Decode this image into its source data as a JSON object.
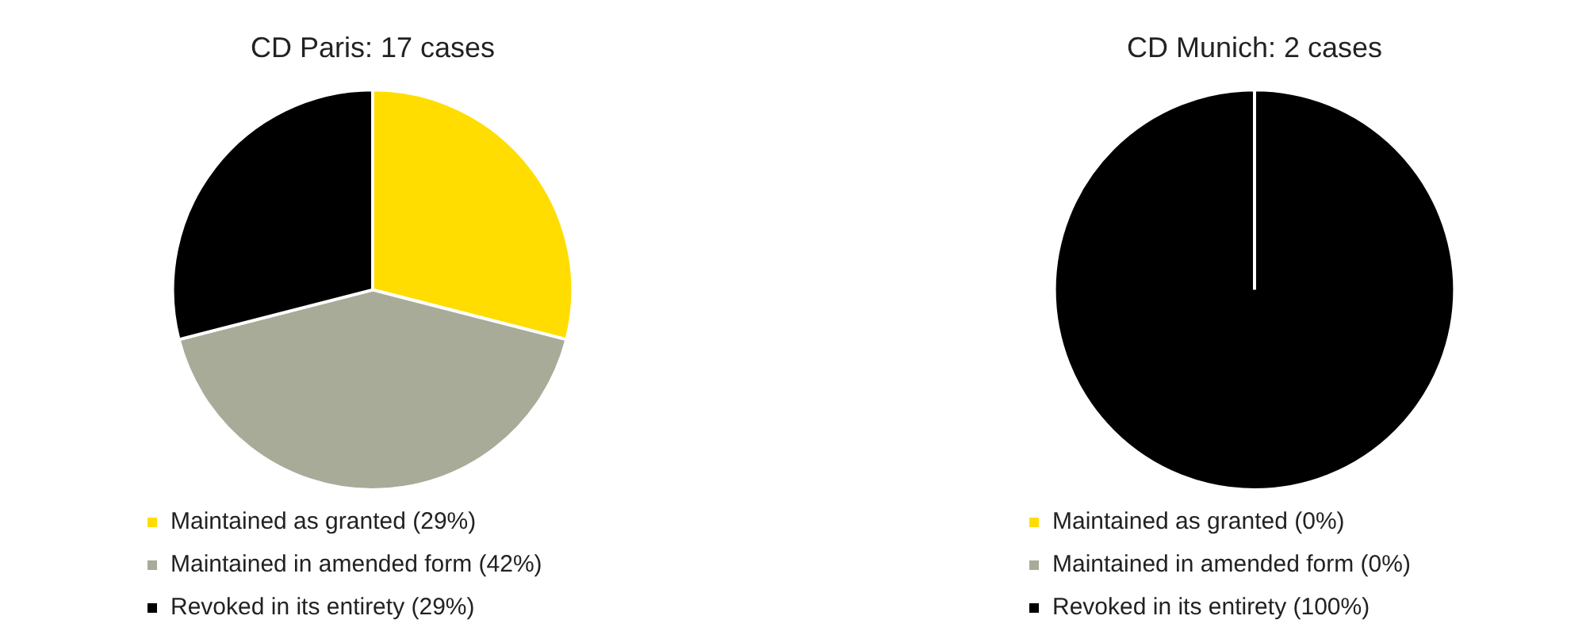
{
  "chart_data": [
    {
      "type": "pie",
      "title": "CD Paris: 17 cases",
      "categories": [
        "Maintained as granted (29%)",
        "Maintained in amended form (42%)",
        "Revoked in its entirety (29%)"
      ],
      "values": [
        29,
        42,
        29
      ],
      "colors": [
        "#ffdd00",
        "#a8ab98",
        "#000000"
      ],
      "legend": "bottom"
    },
    {
      "type": "pie",
      "title": "CD Munich: 2 cases",
      "categories": [
        "Maintained as granted (0%)",
        "Maintained in amended form (0%)",
        "Revoked in its entirety (100%)"
      ],
      "values": [
        0,
        0,
        100
      ],
      "colors": [
        "#ffdd00",
        "#a8ab98",
        "#000000"
      ],
      "legend": "bottom"
    }
  ]
}
